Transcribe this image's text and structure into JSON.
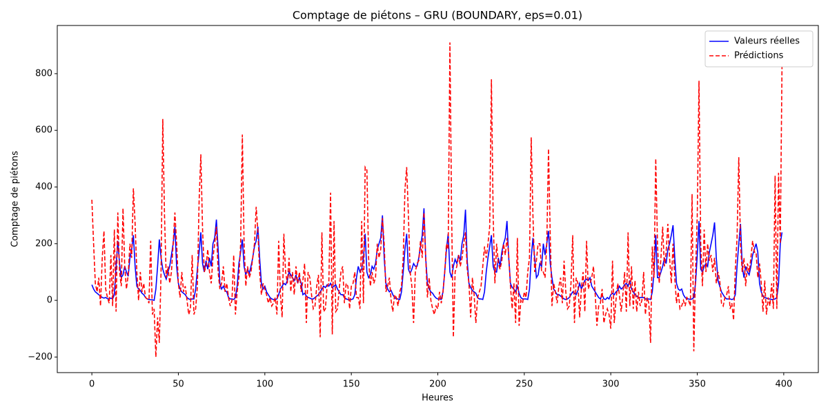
{
  "chart_data": {
    "type": "line",
    "title": "Comptage de piétons – GRU (BOUNDARY, eps=0.01)",
    "xlabel": "Heures",
    "ylabel": "Comptage de piétons",
    "xlim": [
      -20,
      420
    ],
    "ylim": [
      -255,
      970
    ],
    "xticks": [
      0,
      50,
      100,
      150,
      200,
      250,
      300,
      350,
      400
    ],
    "yticks": [
      {
        "value": -200,
        "label": "−200"
      },
      0,
      200,
      400,
      600,
      800
    ],
    "grid": false,
    "legend": "upper right",
    "x": [
      0,
      1,
      2,
      3,
      4,
      5,
      6,
      7,
      8,
      9,
      10,
      11,
      12,
      13,
      14,
      15,
      16,
      17,
      18,
      19,
      20,
      21,
      22,
      23,
      24,
      25,
      26,
      27,
      28,
      29,
      30,
      31,
      32,
      33,
      34,
      35,
      36,
      37,
      38,
      39,
      40,
      41,
      42,
      43,
      44,
      45,
      46,
      47,
      48,
      49,
      50,
      51,
      52,
      53,
      54,
      55,
      56,
      57,
      58,
      59,
      60,
      61,
      62,
      63,
      64,
      65,
      66,
      67,
      68,
      69,
      70,
      71,
      72,
      73,
      74,
      75,
      76,
      77,
      78,
      79,
      80,
      81,
      82,
      83,
      84,
      85,
      86,
      87,
      88,
      89,
      90,
      91,
      92,
      93,
      94,
      95,
      96,
      97,
      98,
      99,
      100,
      101,
      102,
      103,
      104,
      105,
      106,
      107,
      108,
      109,
      110,
      111,
      112,
      113,
      114,
      115,
      116,
      117,
      118,
      119,
      120,
      121,
      122,
      123,
      124,
      125,
      126,
      127,
      128,
      129,
      130,
      131,
      132,
      133,
      134,
      135,
      136,
      137,
      138,
      139,
      140,
      141,
      142,
      143,
      144,
      145,
      146,
      147,
      148,
      149,
      150,
      151,
      152,
      153,
      154,
      155,
      156,
      157,
      158,
      159,
      160,
      161,
      162,
      163,
      164,
      165,
      166,
      167,
      168,
      169,
      170,
      171,
      172,
      173,
      174,
      175,
      176,
      177,
      178,
      179,
      180,
      181,
      182,
      183,
      184,
      185,
      186,
      187,
      188,
      189,
      190,
      191,
      192,
      193,
      194,
      195,
      196,
      197,
      198,
      199,
      200,
      201,
      202,
      203,
      204,
      205,
      206,
      207,
      208,
      209,
      210,
      211,
      212,
      213,
      214,
      215,
      216,
      217,
      218,
      219,
      220,
      221,
      222,
      223,
      224,
      225,
      226,
      227,
      228,
      229,
      230,
      231,
      232,
      233,
      234,
      235,
      236,
      237,
      238,
      239,
      240,
      241,
      242,
      243,
      244,
      245,
      246,
      247,
      248,
      249,
      250,
      251,
      252,
      253,
      254,
      255,
      256,
      257,
      258,
      259,
      260,
      261,
      262,
      263,
      264,
      265,
      266,
      267,
      268,
      269,
      270,
      271,
      272,
      273,
      274,
      275,
      276,
      277,
      278,
      279,
      280,
      281,
      282,
      283,
      284,
      285,
      286,
      287,
      288,
      289,
      290,
      291,
      292,
      293,
      294,
      295,
      296,
      297,
      298,
      299,
      300,
      301,
      302,
      303,
      304,
      305,
      306,
      307,
      308,
      309,
      310,
      311,
      312,
      313,
      314,
      315,
      316,
      317,
      318,
      319,
      320,
      321,
      322,
      323,
      324,
      325,
      326,
      327,
      328,
      329,
      330,
      331,
      332,
      333,
      334,
      335,
      336,
      337,
      338,
      339,
      340,
      341,
      342,
      343,
      344,
      345,
      346,
      347,
      348,
      349,
      350,
      351,
      352,
      353,
      354,
      355,
      356,
      357,
      358,
      359,
      360,
      361,
      362,
      363,
      364,
      365,
      366,
      367,
      368,
      369,
      370,
      371,
      372,
      373,
      374,
      375,
      376,
      377,
      378,
      379,
      380,
      381,
      382,
      383,
      384,
      385,
      386,
      387,
      388,
      389,
      390,
      391,
      392,
      393,
      394,
      395,
      396,
      397,
      398,
      399
    ],
    "series": [
      {
        "name": "Valeurs réelles",
        "color": "#0000ff",
        "dash": "solid",
        "values": [
          55,
          40,
          30,
          25,
          20,
          15,
          10,
          8,
          10,
          6,
          5,
          8,
          5,
          20,
          120,
          210,
          130,
          80,
          90,
          120,
          100,
          85,
          150,
          180,
          230,
          120,
          50,
          40,
          35,
          25,
          20,
          10,
          5,
          3,
          2,
          2,
          0,
          40,
          120,
          215,
          150,
          110,
          90,
          75,
          100,
          120,
          160,
          200,
          260,
          120,
          60,
          40,
          30,
          25,
          20,
          10,
          5,
          3,
          5,
          5,
          40,
          110,
          170,
          240,
          130,
          100,
          140,
          110,
          150,
          120,
          200,
          220,
          285,
          180,
          60,
          40,
          50,
          35,
          30,
          10,
          5,
          5,
          3,
          10,
          50,
          130,
          170,
          215,
          120,
          90,
          110,
          95,
          120,
          150,
          190,
          210,
          260,
          150,
          60,
          40,
          50,
          30,
          20,
          10,
          5,
          3,
          3,
          5,
          20,
          40,
          50,
          60,
          55,
          70,
          100,
          90,
          80,
          70,
          90,
          60,
          80,
          60,
          20,
          25,
          15,
          10,
          8,
          5,
          5,
          10,
          15,
          20,
          30,
          40,
          50,
          45,
          55,
          50,
          60,
          45,
          50,
          55,
          40,
          30,
          20,
          20,
          10,
          5,
          3,
          2,
          3,
          5,
          20,
          80,
          120,
          100,
          110,
          150,
          235,
          100,
          80,
          90,
          120,
          110,
          130,
          180,
          200,
          220,
          300,
          150,
          60,
          40,
          30,
          35,
          20,
          10,
          5,
          5,
          3,
          30,
          100,
          180,
          235,
          110,
          95,
          110,
          130,
          120,
          120,
          150,
          190,
          230,
          325,
          150,
          60,
          40,
          30,
          25,
          15,
          8,
          5,
          5,
          3,
          30,
          100,
          180,
          235,
          100,
          80,
          120,
          145,
          130,
          160,
          140,
          200,
          230,
          320,
          140,
          60,
          45,
          35,
          30,
          25,
          10,
          5,
          5,
          3,
          30,
          100,
          150,
          190,
          230,
          120,
          100,
          100,
          150,
          120,
          170,
          200,
          220,
          280,
          150,
          60,
          45,
          40,
          30,
          50,
          25,
          10,
          5,
          5,
          5,
          3,
          40,
          150,
          220,
          150,
          80,
          90,
          130,
          120,
          200,
          160,
          200,
          245,
          130,
          80,
          40,
          30,
          20,
          20,
          15,
          10,
          5,
          3,
          5,
          10,
          20,
          30,
          25,
          20,
          35,
          60,
          40,
          55,
          70,
          75,
          70,
          80,
          50,
          40,
          30,
          20,
          10,
          5,
          20,
          5,
          3,
          10,
          5,
          20,
          25,
          20,
          30,
          35,
          50,
          40,
          45,
          55,
          60,
          50,
          70,
          40,
          30,
          20,
          15,
          10,
          10,
          10,
          10,
          5,
          5,
          5,
          3,
          30,
          100,
          230,
          80,
          80,
          100,
          120,
          150,
          130,
          180,
          200,
          230,
          265,
          150,
          60,
          40,
          35,
          40,
          20,
          10,
          5,
          5,
          3,
          5,
          10,
          60,
          160,
          280,
          110,
          100,
          120,
          130,
          120,
          170,
          200,
          230,
          275,
          150,
          70,
          50,
          30,
          20,
          10,
          5,
          5,
          5,
          3,
          5,
          20,
          120,
          200,
          270,
          120,
          80,
          120,
          100,
          90,
          120,
          160,
          180,
          200,
          170,
          60,
          30,
          15,
          10,
          8,
          5,
          5,
          3,
          3,
          5,
          10,
          60,
          200,
          240
        ]
      },
      {
        "name": "Prédictions",
        "color": "#ff0000",
        "dash": "dashed",
        "values": [
          355,
          200,
          60,
          30,
          80,
          -20,
          150,
          245,
          40,
          10,
          -10,
          160,
          -20,
          250,
          -40,
          310,
          100,
          50,
          325,
          120,
          40,
          90,
          200,
          150,
          395,
          270,
          100,
          0,
          100,
          30,
          60,
          10,
          5,
          -10,
          210,
          -50,
          -30,
          -200,
          -60,
          -150,
          100,
          640,
          300,
          80,
          120,
          60,
          100,
          200,
          310,
          200,
          60,
          10,
          100,
          30,
          50,
          0,
          -50,
          -30,
          160,
          -50,
          -30,
          50,
          350,
          515,
          250,
          100,
          120,
          180,
          100,
          60,
          150,
          200,
          260,
          100,
          40,
          60,
          120,
          30,
          60,
          10,
          -20,
          0,
          160,
          -50,
          30,
          80,
          200,
          585,
          200,
          50,
          120,
          80,
          100,
          150,
          200,
          330,
          240,
          100,
          20,
          60,
          40,
          20,
          -10,
          10,
          -20,
          -10,
          10,
          -50,
          210,
          20,
          -60,
          235,
          100,
          60,
          150,
          30,
          100,
          20,
          120,
          60,
          100,
          30,
          70,
          130,
          -80,
          100,
          80,
          20,
          -30,
          -20,
          50,
          90,
          -130,
          240,
          -40,
          -30,
          50,
          60,
          380,
          -120,
          280,
          -40,
          -30,
          40,
          100,
          120,
          -10,
          60,
          50,
          -30,
          50,
          60,
          100,
          10,
          10,
          -30,
          280,
          -10,
          470,
          460,
          150,
          50,
          100,
          60,
          80,
          200,
          150,
          180,
          290,
          200,
          30,
          50,
          80,
          0,
          -40,
          20,
          10,
          -20,
          30,
          50,
          150,
          390,
          470,
          300,
          100,
          50,
          -80,
          100,
          130,
          140,
          210,
          150,
          310,
          150,
          10,
          80,
          0,
          -30,
          -50,
          -20,
          -30,
          30,
          -10,
          30,
          100,
          200,
          180,
          910,
          300,
          -130,
          100,
          120,
          160,
          120,
          150,
          200,
          240,
          110,
          60,
          -60,
          80,
          20,
          -80,
          10,
          30,
          50,
          120,
          190,
          150,
          200,
          260,
          780,
          300,
          60,
          200,
          130,
          110,
          140,
          200,
          160,
          220,
          160,
          50,
          -30,
          60,
          -80,
          220,
          -90,
          0,
          -10,
          30,
          10,
          100,
          150,
          575,
          300,
          100,
          140,
          200,
          200,
          100,
          100,
          80,
          200,
          535,
          230,
          -20,
          60,
          30,
          -10,
          50,
          80,
          -10,
          140,
          30,
          -30,
          -20,
          60,
          230,
          -80,
          80,
          60,
          -60,
          40,
          100,
          -40,
          210,
          40,
          60,
          80,
          120,
          20,
          -90,
          -20,
          -10,
          40,
          -80,
          -50,
          -30,
          -50,
          -100,
          140,
          -80,
          0,
          60,
          20,
          -40,
          20,
          100,
          -40,
          240,
          -20,
          120,
          -30,
          70,
          -40,
          30,
          -20,
          0,
          100,
          -50,
          10,
          -10,
          -150,
          190,
          80,
          500,
          200,
          60,
          150,
          260,
          120,
          170,
          270,
          150,
          60,
          200,
          80,
          -10,
          30,
          -30,
          -20,
          0,
          -20,
          10,
          0,
          -20,
          375,
          -180,
          100,
          300,
          775,
          200,
          50,
          250,
          100,
          200,
          140,
          160,
          100,
          150,
          60,
          100,
          70,
          -10,
          -20,
          10,
          20,
          50,
          -30,
          -10,
          -70,
          110,
          220,
          505,
          200,
          100,
          150,
          50,
          130,
          100,
          150,
          210,
          170,
          170,
          80,
          130,
          60,
          -40,
          70,
          -50,
          10,
          -20,
          60,
          -30,
          440,
          -30,
          450,
          200,
          830
        ]
      }
    ]
  }
}
